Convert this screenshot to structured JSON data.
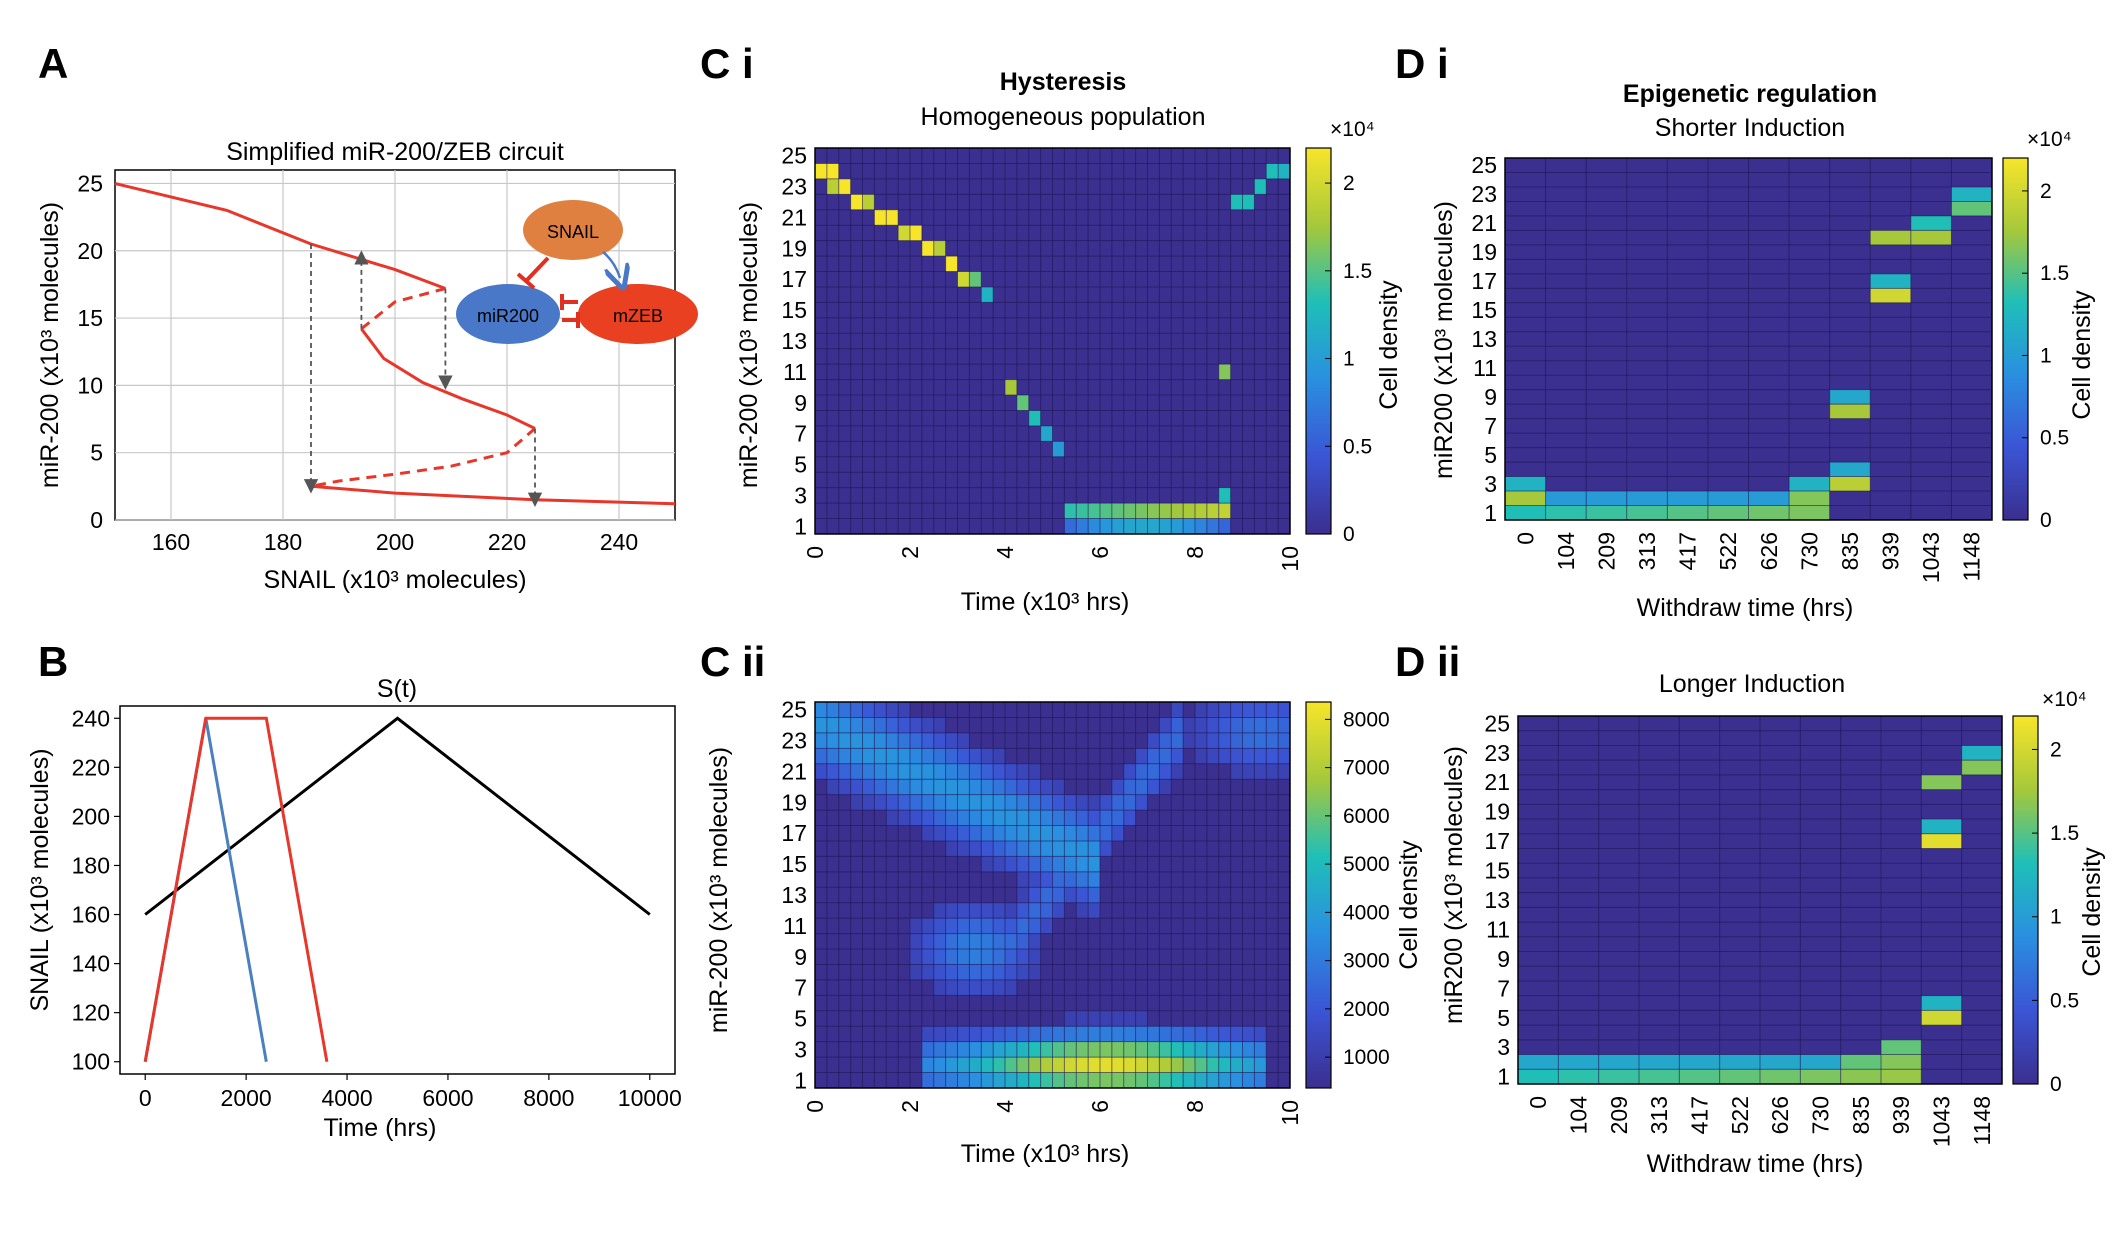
{
  "colors": {
    "red": "#e8362a",
    "blue": "#4a7fc0",
    "black": "#000000",
    "orange": "#e08040",
    "mir_node": "#4a78c8",
    "zeb_node": "#e84020",
    "grid": "#c8c8c8",
    "arrow": "#555555",
    "heat_bg": "#3b2f8f",
    "inhib": "#e03020"
  },
  "panels": {
    "A": {
      "label": "A",
      "title": "Simplified miR-200/ZEB circuit",
      "xlabel": "SNAIL (x10³ molecules)",
      "ylabel": "miR-200 (x10³ molecules)",
      "xticks": [
        160,
        180,
        200,
        220,
        240
      ],
      "yticks": [
        0,
        5,
        10,
        15,
        20,
        25
      ],
      "nodes": {
        "snail": "SNAIL",
        "mir": "miR200",
        "zeb": "mZEB"
      }
    },
    "B": {
      "label": "B",
      "title": "S(t)",
      "xlabel": "Time (hrs)",
      "ylabel": "SNAIL (x10³ molecules)",
      "xticks": [
        "0",
        "2000",
        "4000",
        "6000",
        "8000",
        "10000"
      ],
      "yticks": [
        "100",
        "120",
        "140",
        "160",
        "180",
        "200",
        "220",
        "240"
      ]
    },
    "Ci": {
      "label": "C i",
      "title": "Hysteresis",
      "subtitle": "Homogeneous population",
      "xlabel": "Time (x10³ hrs)",
      "ylabel": "miR-200 (x10³ molecules)",
      "cbar_label": "Cell density",
      "cbar_exp": "×10⁴",
      "cbar_ticks": [
        "0",
        "0.5",
        "1",
        "1.5",
        "2"
      ],
      "xticks": [
        "0",
        "2",
        "4",
        "6",
        "8",
        "10"
      ]
    },
    "Cii": {
      "label": "C ii",
      "xlabel": "Time (x10³ hrs)",
      "ylabel": "miR-200 (x10³ molecules)",
      "cbar_label": "Cell density",
      "cbar_ticks": [
        "1000",
        "2000",
        "3000",
        "4000",
        "5000",
        "6000",
        "7000",
        "8000"
      ],
      "xticks": [
        "0",
        "2",
        "4",
        "6",
        "8",
        "10"
      ]
    },
    "Di": {
      "label": "D i",
      "title": "Epigenetic regulation",
      "subtitle": "Shorter Induction",
      "xlabel": "Withdraw time (hrs)",
      "ylabel": "miR200 (x10³ molecules)",
      "cbar_label": "Cell density",
      "cbar_exp": "×10⁴",
      "cbar_ticks": [
        "0",
        "0.5",
        "1",
        "1.5",
        "2"
      ],
      "xticks": [
        "0",
        "104",
        "209",
        "313",
        "417",
        "522",
        "626",
        "730",
        "835",
        "939",
        "1043",
        "1148"
      ]
    },
    "Dii": {
      "label": "D ii",
      "title": "Longer Induction",
      "xlabel": "Withdraw time (hrs)",
      "ylabel": "miR200 (x10³ molecules)",
      "cbar_label": "Cell density",
      "cbar_exp": "×10⁴",
      "cbar_ticks": [
        "0",
        "0.5",
        "1",
        "1.5",
        "2"
      ],
      "xticks": [
        "0",
        "104",
        "209",
        "313",
        "417",
        "522",
        "626",
        "730",
        "835",
        "939",
        "1043",
        "1148"
      ]
    }
  },
  "chart_data": [
    {
      "id": "A",
      "type": "line",
      "title": "Simplified miR-200/ZEB circuit",
      "xlim": [
        150,
        250
      ],
      "ylim": [
        0,
        26
      ],
      "series": [
        {
          "name": "stable-upper",
          "style": "solid",
          "x": [
            150,
            170,
            185,
            200,
            209
          ],
          "y": [
            25,
            23,
            20.5,
            18.6,
            17.2
          ]
        },
        {
          "name": "unstable-1",
          "style": "dashed",
          "x": [
            209,
            200,
            194
          ],
          "y": [
            17.2,
            16.2,
            14.2
          ]
        },
        {
          "name": "stable-mid",
          "style": "solid",
          "x": [
            194,
            198,
            205,
            212,
            220,
            225
          ],
          "y": [
            14.2,
            12.0,
            10.2,
            9.0,
            7.8,
            6.8
          ]
        },
        {
          "name": "unstable-2",
          "style": "dashed",
          "x": [
            225,
            220,
            210,
            200,
            190,
            185
          ],
          "y": [
            6.8,
            5.0,
            4.0,
            3.4,
            2.9,
            2.5
          ]
        },
        {
          "name": "stable-lower",
          "style": "solid",
          "x": [
            185,
            200,
            225,
            250
          ],
          "y": [
            2.5,
            2.0,
            1.5,
            1.2
          ]
        }
      ],
      "transitions": [
        [
          185,
          20.5,
          185,
          2.5
        ],
        [
          194,
          14.2,
          194,
          19.5
        ],
        [
          209,
          17.2,
          209,
          10.2
        ],
        [
          225,
          6.8,
          225,
          1.5
        ]
      ]
    },
    {
      "id": "B",
      "type": "line",
      "title": "S(t)",
      "xlim": [
        -500,
        10500
      ],
      "ylim": [
        95,
        245
      ],
      "series": [
        {
          "name": "black",
          "x": [
            0,
            5000,
            10000
          ],
          "y": [
            160,
            240,
            160
          ]
        },
        {
          "name": "blue",
          "x": [
            0,
            1200,
            2400
          ],
          "y": [
            100,
            240,
            100
          ]
        },
        {
          "name": "red",
          "x": [
            0,
            1200,
            2400,
            3600
          ],
          "y": [
            100,
            240,
            240,
            100
          ]
        }
      ]
    },
    {
      "id": "Ci",
      "type": "heatmap",
      "cols": 40,
      "rows": 25,
      "max": 22000,
      "cells": [
        [
          0,
          23,
          1
        ],
        [
          1,
          23,
          1
        ],
        [
          1,
          22,
          0.85
        ],
        [
          2,
          22,
          1
        ],
        [
          3,
          21,
          1
        ],
        [
          4,
          21,
          0.85
        ],
        [
          5,
          20,
          1
        ],
        [
          6,
          20,
          1
        ],
        [
          7,
          19,
          0.9
        ],
        [
          8,
          19,
          1
        ],
        [
          9,
          18,
          1
        ],
        [
          10,
          18,
          0.85
        ],
        [
          11,
          17,
          1
        ],
        [
          12,
          16,
          0.9
        ],
        [
          13,
          16,
          0.7
        ],
        [
          14,
          15,
          0.55
        ],
        [
          16,
          9,
          0.8
        ],
        [
          17,
          8,
          0.7
        ],
        [
          18,
          7,
          0.6
        ],
        [
          19,
          6,
          0.5
        ],
        [
          20,
          5,
          0.45
        ],
        [
          34,
          10,
          0.75
        ],
        [
          35,
          21,
          0.6
        ],
        [
          36,
          21,
          0.6
        ],
        [
          37,
          22,
          0.6
        ],
        [
          38,
          23,
          0.6
        ],
        [
          39,
          23,
          0.55
        ]
      ]
    },
    {
      "id": "Cii",
      "type": "heatmap",
      "cols": 40,
      "rows": 25,
      "max": 8500
    },
    {
      "id": "Di",
      "type": "heatmap",
      "cols": 12,
      "rows": 25,
      "cells": [
        [
          8,
          7,
          0.8
        ],
        [
          8,
          8,
          0.5
        ],
        [
          9,
          15,
          0.9
        ],
        [
          9,
          16,
          0.55
        ],
        [
          9,
          19,
          0.8
        ],
        [
          10,
          19,
          0.8
        ],
        [
          10,
          20,
          0.6
        ],
        [
          11,
          21,
          0.7
        ],
        [
          11,
          22,
          0.55
        ]
      ]
    },
    {
      "id": "Dii",
      "type": "heatmap",
      "cols": 12,
      "rows": 25,
      "cells": [
        [
          10,
          4,
          0.9
        ],
        [
          10,
          5,
          0.55
        ],
        [
          10,
          16,
          0.95
        ],
        [
          10,
          17,
          0.55
        ],
        [
          10,
          20,
          0.75
        ],
        [
          11,
          21,
          0.75
        ],
        [
          11,
          22,
          0.55
        ]
      ]
    }
  ]
}
